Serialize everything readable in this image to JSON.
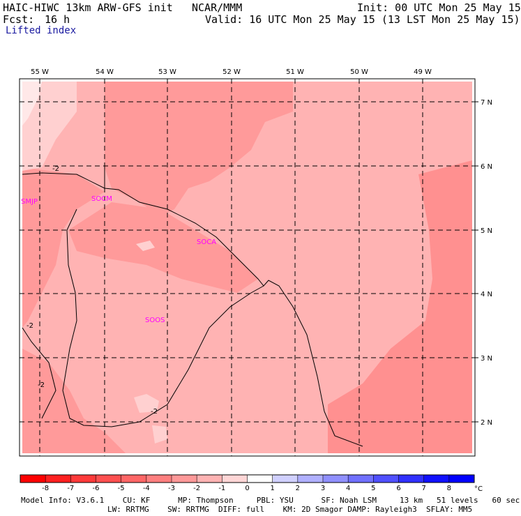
{
  "header": {
    "model": "HAIC-HIWC 13km ARW-GFS init",
    "center": "NCAR/MMM",
    "init": "Init: 00 UTC Mon 25 May 15",
    "fcst_label": "Fcst:",
    "fcst_value": "16 h",
    "valid": "Valid: 16 UTC Mon 25 May 15 (13 LST Mon 25 May 15)",
    "field": "Lifted index"
  },
  "map": {
    "lon_labels": [
      "55 W",
      "54 W",
      "53 W",
      "52 W",
      "51 W",
      "50 W",
      "49 W"
    ],
    "lat_labels": [
      "7 N",
      "6 N",
      "5 N",
      "4 N",
      "3 N",
      "2 N"
    ],
    "stations": [
      "SMJP",
      "SOCM",
      "SOCA",
      "SOOS"
    ],
    "contour_labels": [
      "-2",
      "-2",
      "-2",
      "-2"
    ],
    "colors": {
      "bg_light": "#ffb3b3",
      "medium": "#ff9a9a",
      "dark": "#ff8080",
      "pale": "#ffd0d0",
      "very_pale": "#ffe8e8",
      "station": "#ff00ff"
    }
  },
  "colorbar": {
    "ticks": [
      "-8",
      "-7",
      "-6",
      "-5",
      "-4",
      "-3",
      "-2",
      "-1",
      "0",
      "1",
      "2",
      "3",
      "4",
      "5",
      "6",
      "7",
      "8"
    ],
    "unit": "°C",
    "colors": [
      "#ff0000",
      "#ff2020",
      "#ff3a3a",
      "#ff5050",
      "#ff6666",
      "#ff7f7f",
      "#ff9999",
      "#ffb3b3",
      "#ffd6d6",
      "#ffffff",
      "#d0d0ff",
      "#b0b0ff",
      "#9090ff",
      "#7070ff",
      "#5050ff",
      "#3030ff",
      "#1010ff",
      "#0000ff"
    ]
  },
  "footer": {
    "line1": "Model Info: V3.6.1    CU: KF      MP: Thompson     PBL: YSU      SF: Noah LSM     13 km   51 levels   60 sec",
    "line2": "LW: RRTMG    SW: RRTMG  DIFF: full    KM: 2D Smagor DAMP: Rayleigh3  SFLAY: MM5"
  }
}
